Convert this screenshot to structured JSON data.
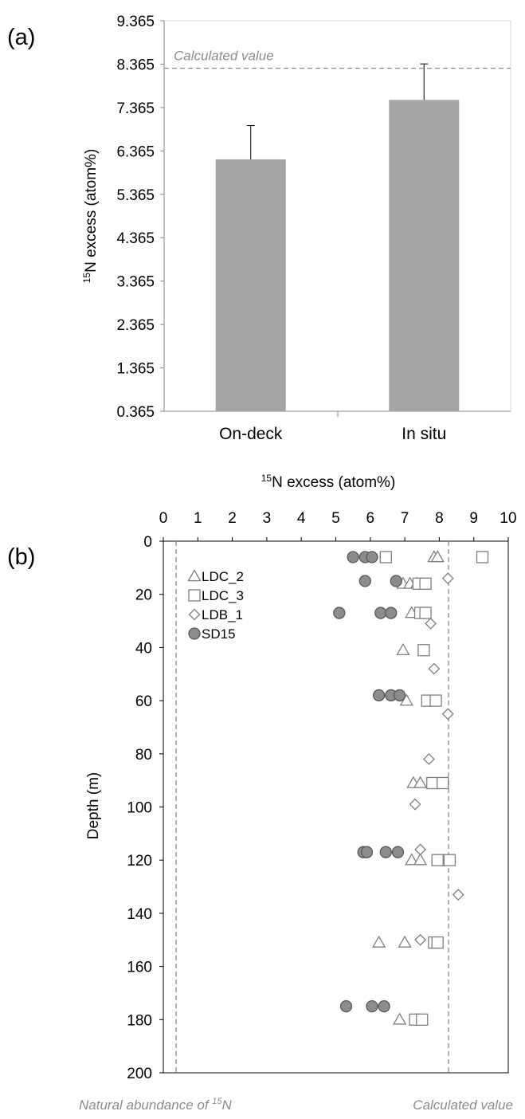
{
  "chart_data": [
    {
      "panel_label": "(a)",
      "type": "bar",
      "categories": [
        "On-deck",
        "In situ"
      ],
      "values": [
        6.17,
        7.54
      ],
      "error_plus": [
        0.78,
        0.83
      ],
      "ylabel_sup": "15",
      "ylabel_rest": "N excess (atom%)",
      "ylim": [
        0.365,
        9.365
      ],
      "ytick_labels": [
        "0.365",
        "1.365",
        "2.365",
        "3.365",
        "4.365",
        "5.365",
        "6.365",
        "7.365",
        "8.365",
        "9.365"
      ],
      "reference_line": {
        "value": 8.27,
        "label": "Calculated value"
      },
      "grid": false,
      "bar_color": "#a6a6a6"
    },
    {
      "panel_label": "(b)",
      "type": "scatter",
      "xlabel_sup": "15",
      "xlabel_rest": "N excess (atom%)",
      "ylabel": "Depth (m)",
      "xlim": [
        0,
        10
      ],
      "ylim": [
        0,
        200
      ],
      "y_inverted": true,
      "x_axis_position": "top",
      "xtick_labels": [
        "0",
        "1",
        "2",
        "3",
        "4",
        "5",
        "6",
        "7",
        "8",
        "9",
        "10"
      ],
      "ytick_labels": [
        "0",
        "20",
        "40",
        "60",
        "80",
        "100",
        "120",
        "140",
        "160",
        "180",
        "200"
      ],
      "legend_position": "top-left",
      "series": [
        {
          "name": "LDC_2",
          "marker": "triangle",
          "color": "#ffffff",
          "points": [
            [
              7.85,
              6
            ],
            [
              7.95,
              6
            ],
            [
              6.95,
              16
            ],
            [
              7.15,
              16
            ],
            [
              7.35,
              16
            ],
            [
              7.2,
              27
            ],
            [
              6.95,
              41
            ],
            [
              7.05,
              60
            ],
            [
              7.25,
              91
            ],
            [
              7.45,
              91
            ],
            [
              7.2,
              120
            ],
            [
              7.45,
              120
            ],
            [
              6.25,
              151
            ],
            [
              7.0,
              151
            ],
            [
              6.85,
              180
            ]
          ]
        },
        {
          "name": "LDC_3",
          "marker": "square",
          "color": "#ffffff",
          "points": [
            [
              6.45,
              6
            ],
            [
              9.25,
              6
            ],
            [
              7.4,
              16
            ],
            [
              7.6,
              16
            ],
            [
              7.45,
              27
            ],
            [
              7.6,
              27
            ],
            [
              7.55,
              41
            ],
            [
              7.65,
              60
            ],
            [
              7.9,
              60
            ],
            [
              7.8,
              91
            ],
            [
              8.1,
              91
            ],
            [
              7.95,
              120
            ],
            [
              8.3,
              120
            ],
            [
              7.85,
              151
            ],
            [
              7.95,
              151
            ],
            [
              7.3,
              180
            ],
            [
              7.5,
              180
            ]
          ]
        },
        {
          "name": "LDB_1",
          "marker": "diamond",
          "color": "#ffffff",
          "points": [
            [
              8.25,
              14
            ],
            [
              7.75,
              31
            ],
            [
              7.85,
              48
            ],
            [
              8.25,
              65
            ],
            [
              7.7,
              82
            ],
            [
              7.3,
              99
            ],
            [
              7.45,
              116
            ],
            [
              8.55,
              133
            ],
            [
              7.45,
              150
            ]
          ]
        },
        {
          "name": "SD15",
          "marker": "circle",
          "color": "#8c8c8c",
          "points": [
            [
              5.5,
              6
            ],
            [
              5.85,
              6
            ],
            [
              6.05,
              6
            ],
            [
              5.85,
              15
            ],
            [
              6.75,
              15
            ],
            [
              5.1,
              27
            ],
            [
              6.3,
              27
            ],
            [
              6.6,
              27
            ],
            [
              6.25,
              58
            ],
            [
              6.6,
              58
            ],
            [
              6.85,
              58
            ],
            [
              5.8,
              117
            ],
            [
              5.9,
              117
            ],
            [
              6.45,
              117
            ],
            [
              6.8,
              117
            ],
            [
              5.3,
              175
            ],
            [
              6.05,
              175
            ],
            [
              6.4,
              175
            ]
          ]
        }
      ],
      "reference_lines": [
        {
          "value": 0.37,
          "label": "Natural abundance of ",
          "label_sup": "15",
          "label_tail": "N"
        },
        {
          "value": 8.27,
          "label": "Calculated value"
        }
      ]
    }
  ]
}
